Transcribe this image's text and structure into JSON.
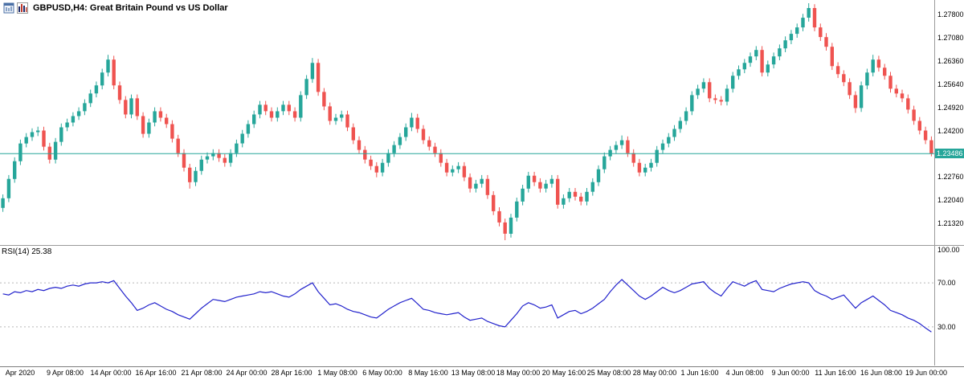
{
  "header": {
    "title": "GBPUSD,H4: Great Britain Pound vs US Dollar"
  },
  "price_axis": {
    "labels": [
      "1.27800",
      "1.27080",
      "1.26360",
      "1.25640",
      "1.24920",
      "1.24200",
      "1.22760",
      "1.22040",
      "1.21320"
    ],
    "current_price": "1.23486"
  },
  "rsi": {
    "label": "RSI(14) 25.38",
    "axis_labels": [
      "100.00",
      "70.00",
      "30.00"
    ]
  },
  "colors": {
    "up": "#26a69a",
    "down": "#ef5350",
    "price_line": "#26a69a",
    "rsi_line": "#2222cc",
    "grid": "#b8b8b8"
  },
  "chart_data": {
    "type": "candlestick",
    "symbol": "GBPUSD",
    "timeframe": "H4",
    "title": "GBPUSD,H4: Great Britain Pound vs US Dollar",
    "ylim": [
      1.2065,
      1.2825
    ],
    "current_price": 1.23486,
    "x_labels": [
      "Apr 2020",
      "9 Apr 08:00",
      "14 Apr 00:00",
      "16 Apr 16:00",
      "21 Apr 08:00",
      "24 Apr 00:00",
      "28 Apr 16:00",
      "1 May 08:00",
      "6 May 00:00",
      "8 May 16:00",
      "13 May 08:00",
      "18 May 00:00",
      "20 May 16:00",
      "25 May 08:00",
      "28 May 00:00",
      "1 Jun 16:00",
      "4 Jun 08:00",
      "9 Jun 00:00",
      "11 Jun 16:00",
      "16 Jun 08:00",
      "19 Jun 00:00"
    ],
    "candles_ohlc": [
      [
        1.218,
        1.2222,
        1.2168,
        1.221
      ],
      [
        1.221,
        1.2282,
        1.2198,
        1.227
      ],
      [
        1.227,
        1.2337,
        1.2258,
        1.2325
      ],
      [
        1.2325,
        1.2392,
        1.2313,
        1.238
      ],
      [
        1.238,
        1.2412,
        1.2368,
        1.24
      ],
      [
        1.24,
        1.2427,
        1.2388,
        1.2415
      ],
      [
        1.2415,
        1.2432,
        1.2403,
        1.242
      ],
      [
        1.242,
        1.2432,
        1.2358,
        1.237
      ],
      [
        1.237,
        1.2382,
        1.2318,
        1.233
      ],
      [
        1.233,
        1.2397,
        1.2318,
        1.2385
      ],
      [
        1.2385,
        1.2442,
        1.2373,
        1.243
      ],
      [
        1.243,
        1.2457,
        1.2418,
        1.2445
      ],
      [
        1.2445,
        1.2477,
        1.2433,
        1.2465
      ],
      [
        1.2465,
        1.2492,
        1.2453,
        1.248
      ],
      [
        1.248,
        1.2517,
        1.2468,
        1.2505
      ],
      [
        1.2505,
        1.2547,
        1.2493,
        1.2535
      ],
      [
        1.2535,
        1.2572,
        1.2523,
        1.256
      ],
      [
        1.256,
        1.2612,
        1.2548,
        1.26
      ],
      [
        1.26,
        1.2655,
        1.2588,
        1.264
      ],
      [
        1.264,
        1.2652,
        1.2548,
        1.256
      ],
      [
        1.256,
        1.2572,
        1.2503,
        1.2515
      ],
      [
        1.2515,
        1.2527,
        1.2458,
        1.247
      ],
      [
        1.247,
        1.2532,
        1.2458,
        1.252
      ],
      [
        1.252,
        1.2532,
        1.2453,
        1.2465
      ],
      [
        1.2465,
        1.2477,
        1.2398,
        1.241
      ],
      [
        1.241,
        1.2457,
        1.2398,
        1.2445
      ],
      [
        1.2445,
        1.2492,
        1.2433,
        1.248
      ],
      [
        1.248,
        1.2492,
        1.2448,
        1.246
      ],
      [
        1.246,
        1.2472,
        1.2428,
        1.244
      ],
      [
        1.244,
        1.2452,
        1.2383,
        1.2395
      ],
      [
        1.2395,
        1.2407,
        1.2338,
        1.235
      ],
      [
        1.235,
        1.2362,
        1.2293,
        1.2305
      ],
      [
        1.2305,
        1.2317,
        1.224,
        1.226
      ],
      [
        1.226,
        1.2307,
        1.2248,
        1.2295
      ],
      [
        1.2295,
        1.2342,
        1.2283,
        1.233
      ],
      [
        1.233,
        1.2352,
        1.2318,
        1.234
      ],
      [
        1.234,
        1.2362,
        1.2328,
        1.235
      ],
      [
        1.235,
        1.2362,
        1.2323,
        1.2335
      ],
      [
        1.2335,
        1.2347,
        1.2308,
        1.232
      ],
      [
        1.232,
        1.2362,
        1.2308,
        1.235
      ],
      [
        1.235,
        1.2392,
        1.2338,
        1.238
      ],
      [
        1.238,
        1.2422,
        1.2368,
        1.241
      ],
      [
        1.241,
        1.2452,
        1.2398,
        1.244
      ],
      [
        1.244,
        1.2482,
        1.2428,
        1.247
      ],
      [
        1.247,
        1.2512,
        1.2458,
        1.25
      ],
      [
        1.25,
        1.2512,
        1.2468,
        1.248
      ],
      [
        1.248,
        1.2492,
        1.2448,
        1.246
      ],
      [
        1.246,
        1.2492,
        1.2448,
        1.248
      ],
      [
        1.248,
        1.2512,
        1.2468,
        1.25
      ],
      [
        1.25,
        1.2512,
        1.2468,
        1.248
      ],
      [
        1.248,
        1.2492,
        1.2448,
        1.246
      ],
      [
        1.246,
        1.2542,
        1.2448,
        1.253
      ],
      [
        1.253,
        1.2592,
        1.2518,
        1.258
      ],
      [
        1.258,
        1.2645,
        1.2568,
        1.263
      ],
      [
        1.263,
        1.2642,
        1.2528,
        1.254
      ],
      [
        1.254,
        1.2552,
        1.2483,
        1.2495
      ],
      [
        1.2495,
        1.2507,
        1.2438,
        1.245
      ],
      [
        1.245,
        1.2472,
        1.2438,
        1.246
      ],
      [
        1.246,
        1.2482,
        1.2448,
        1.247
      ],
      [
        1.247,
        1.2482,
        1.2418,
        1.243
      ],
      [
        1.243,
        1.2442,
        1.2378,
        1.239
      ],
      [
        1.239,
        1.2402,
        1.2348,
        1.236
      ],
      [
        1.236,
        1.2372,
        1.2318,
        1.233
      ],
      [
        1.233,
        1.2342,
        1.2298,
        1.231
      ],
      [
        1.231,
        1.2322,
        1.2275,
        1.229
      ],
      [
        1.229,
        1.2332,
        1.2278,
        1.232
      ],
      [
        1.232,
        1.2362,
        1.2308,
        1.235
      ],
      [
        1.235,
        1.2387,
        1.2338,
        1.2375
      ],
      [
        1.2375,
        1.2412,
        1.2363,
        1.24
      ],
      [
        1.24,
        1.2442,
        1.2388,
        1.243
      ],
      [
        1.243,
        1.2475,
        1.2418,
        1.246
      ],
      [
        1.246,
        1.2472,
        1.2413,
        1.2425
      ],
      [
        1.2425,
        1.2437,
        1.2378,
        1.239
      ],
      [
        1.239,
        1.2402,
        1.2358,
        1.237
      ],
      [
        1.237,
        1.2382,
        1.2338,
        1.235
      ],
      [
        1.235,
        1.2362,
        1.2308,
        1.232
      ],
      [
        1.232,
        1.2332,
        1.2278,
        1.229
      ],
      [
        1.229,
        1.2312,
        1.2278,
        1.23
      ],
      [
        1.23,
        1.2322,
        1.2288,
        1.231
      ],
      [
        1.231,
        1.2322,
        1.2263,
        1.2275
      ],
      [
        1.2275,
        1.2287,
        1.2228,
        1.224
      ],
      [
        1.224,
        1.2267,
        1.2228,
        1.2255
      ],
      [
        1.2255,
        1.2282,
        1.2243,
        1.227
      ],
      [
        1.227,
        1.2282,
        1.2208,
        1.222
      ],
      [
        1.222,
        1.2232,
        1.2158,
        1.217
      ],
      [
        1.217,
        1.2182,
        1.2123,
        1.2135
      ],
      [
        1.2135,
        1.2147,
        1.208,
        1.21
      ],
      [
        1.21,
        1.2162,
        1.2088,
        1.215
      ],
      [
        1.215,
        1.2212,
        1.2138,
        1.22
      ],
      [
        1.22,
        1.2252,
        1.2188,
        1.224
      ],
      [
        1.224,
        1.2292,
        1.2228,
        1.228
      ],
      [
        1.228,
        1.2292,
        1.2248,
        1.226
      ],
      [
        1.226,
        1.2272,
        1.2228,
        1.224
      ],
      [
        1.224,
        1.2267,
        1.2228,
        1.2255
      ],
      [
        1.2255,
        1.2282,
        1.2243,
        1.227
      ],
      [
        1.227,
        1.2282,
        1.2178,
        1.219
      ],
      [
        1.219,
        1.2222,
        1.2178,
        1.221
      ],
      [
        1.221,
        1.2242,
        1.2198,
        1.223
      ],
      [
        1.223,
        1.2242,
        1.2203,
        1.2215
      ],
      [
        1.2215,
        1.2227,
        1.2188,
        1.22
      ],
      [
        1.22,
        1.2242,
        1.2188,
        1.223
      ],
      [
        1.223,
        1.2272,
        1.2218,
        1.226
      ],
      [
        1.226,
        1.2312,
        1.2248,
        1.23
      ],
      [
        1.23,
        1.2352,
        1.2288,
        1.234
      ],
      [
        1.234,
        1.2372,
        1.2328,
        1.236
      ],
      [
        1.236,
        1.2387,
        1.2348,
        1.2375
      ],
      [
        1.2375,
        1.2405,
        1.2363,
        1.239
      ],
      [
        1.239,
        1.2402,
        1.2338,
        1.235
      ],
      [
        1.235,
        1.2362,
        1.2308,
        1.232
      ],
      [
        1.232,
        1.2332,
        1.2278,
        1.229
      ],
      [
        1.229,
        1.2317,
        1.2278,
        1.2305
      ],
      [
        1.2305,
        1.2332,
        1.2293,
        1.232
      ],
      [
        1.232,
        1.2372,
        1.2308,
        1.236
      ],
      [
        1.236,
        1.2392,
        1.2348,
        1.238
      ],
      [
        1.238,
        1.2412,
        1.2368,
        1.24
      ],
      [
        1.24,
        1.2437,
        1.2388,
        1.2425
      ],
      [
        1.2425,
        1.2462,
        1.2413,
        1.245
      ],
      [
        1.245,
        1.2492,
        1.2438,
        1.248
      ],
      [
        1.248,
        1.2542,
        1.2468,
        1.253
      ],
      [
        1.253,
        1.2562,
        1.2518,
        1.255
      ],
      [
        1.255,
        1.2582,
        1.2538,
        1.257
      ],
      [
        1.257,
        1.2582,
        1.2508,
        1.252
      ],
      [
        1.252,
        1.2532,
        1.2503,
        1.2515
      ],
      [
        1.2515,
        1.2527,
        1.2498,
        1.251
      ],
      [
        1.251,
        1.2562,
        1.2498,
        1.255
      ],
      [
        1.255,
        1.2602,
        1.2538,
        1.259
      ],
      [
        1.259,
        1.2622,
        1.2578,
        1.261
      ],
      [
        1.261,
        1.2642,
        1.2598,
        1.263
      ],
      [
        1.263,
        1.2662,
        1.2618,
        1.265
      ],
      [
        1.265,
        1.2682,
        1.2638,
        1.267
      ],
      [
        1.267,
        1.2682,
        1.2588,
        1.26
      ],
      [
        1.26,
        1.2637,
        1.2588,
        1.2625
      ],
      [
        1.2625,
        1.2662,
        1.2613,
        1.265
      ],
      [
        1.265,
        1.2687,
        1.2638,
        1.2675
      ],
      [
        1.2675,
        1.2712,
        1.2663,
        1.27
      ],
      [
        1.27,
        1.2732,
        1.2688,
        1.272
      ],
      [
        1.272,
        1.2752,
        1.2708,
        1.274
      ],
      [
        1.274,
        1.2782,
        1.2728,
        1.277
      ],
      [
        1.277,
        1.2815,
        1.2758,
        1.28
      ],
      [
        1.28,
        1.2812,
        1.2728,
        1.274
      ],
      [
        1.274,
        1.2752,
        1.2698,
        1.271
      ],
      [
        1.271,
        1.2722,
        1.2668,
        1.268
      ],
      [
        1.268,
        1.2692,
        1.2608,
        1.262
      ],
      [
        1.262,
        1.2632,
        1.2583,
        1.2595
      ],
      [
        1.2595,
        1.2607,
        1.2558,
        1.257
      ],
      [
        1.257,
        1.2582,
        1.2518,
        1.253
      ],
      [
        1.253,
        1.2542,
        1.2475,
        1.249
      ],
      [
        1.249,
        1.2572,
        1.2478,
        1.256
      ],
      [
        1.256,
        1.2612,
        1.2548,
        1.26
      ],
      [
        1.26,
        1.2655,
        1.2588,
        1.264
      ],
      [
        1.264,
        1.2652,
        1.2603,
        1.2615
      ],
      [
        1.2615,
        1.2627,
        1.2578,
        1.259
      ],
      [
        1.259,
        1.2602,
        1.2538,
        1.255
      ],
      [
        1.255,
        1.2562,
        1.2523,
        1.2535
      ],
      [
        1.2535,
        1.2547,
        1.2508,
        1.252
      ],
      [
        1.252,
        1.2532,
        1.2473,
        1.2485
      ],
      [
        1.2485,
        1.2497,
        1.2438,
        1.245
      ],
      [
        1.245,
        1.2462,
        1.2408,
        1.242
      ],
      [
        1.242,
        1.2432,
        1.2378,
        1.239
      ],
      [
        1.239,
        1.2402,
        1.234,
        1.23486
      ]
    ],
    "indicator": {
      "name": "RSI",
      "period": 14,
      "value": 25.38,
      "ylim": [
        0,
        100
      ],
      "levels": [
        70,
        30
      ],
      "values": [
        60,
        59,
        62,
        61,
        63,
        62,
        64,
        63,
        65,
        66,
        65,
        67,
        68,
        67,
        69,
        70,
        70,
        71,
        70,
        72,
        65,
        58,
        52,
        45,
        47,
        50,
        52,
        49,
        46,
        44,
        41,
        39,
        37,
        42,
        47,
        51,
        55,
        54,
        53,
        55,
        57,
        58,
        59,
        60,
        62,
        61,
        62,
        60,
        58,
        57,
        60,
        64,
        67,
        70,
        62,
        56,
        50,
        51,
        49,
        46,
        44,
        43,
        41,
        39,
        38,
        42,
        46,
        49,
        52,
        54,
        56,
        51,
        46,
        45,
        43,
        42,
        41,
        42,
        43,
        39,
        36,
        37,
        38,
        35,
        33,
        31,
        30,
        36,
        42,
        49,
        52,
        50,
        47,
        48,
        50,
        38,
        41,
        44,
        45,
        42,
        44,
        47,
        51,
        55,
        62,
        68,
        73,
        68,
        63,
        58,
        55,
        58,
        62,
        66,
        63,
        61,
        63,
        66,
        69,
        70,
        71,
        65,
        61,
        58,
        65,
        71,
        69,
        67,
        70,
        72,
        64,
        63,
        62,
        65,
        67,
        69,
        70,
        71,
        70,
        63,
        60,
        58,
        55,
        57,
        59,
        53,
        47,
        52,
        55,
        58,
        54,
        50,
        45,
        43,
        41,
        38,
        36,
        33,
        29,
        25.38
      ]
    }
  }
}
